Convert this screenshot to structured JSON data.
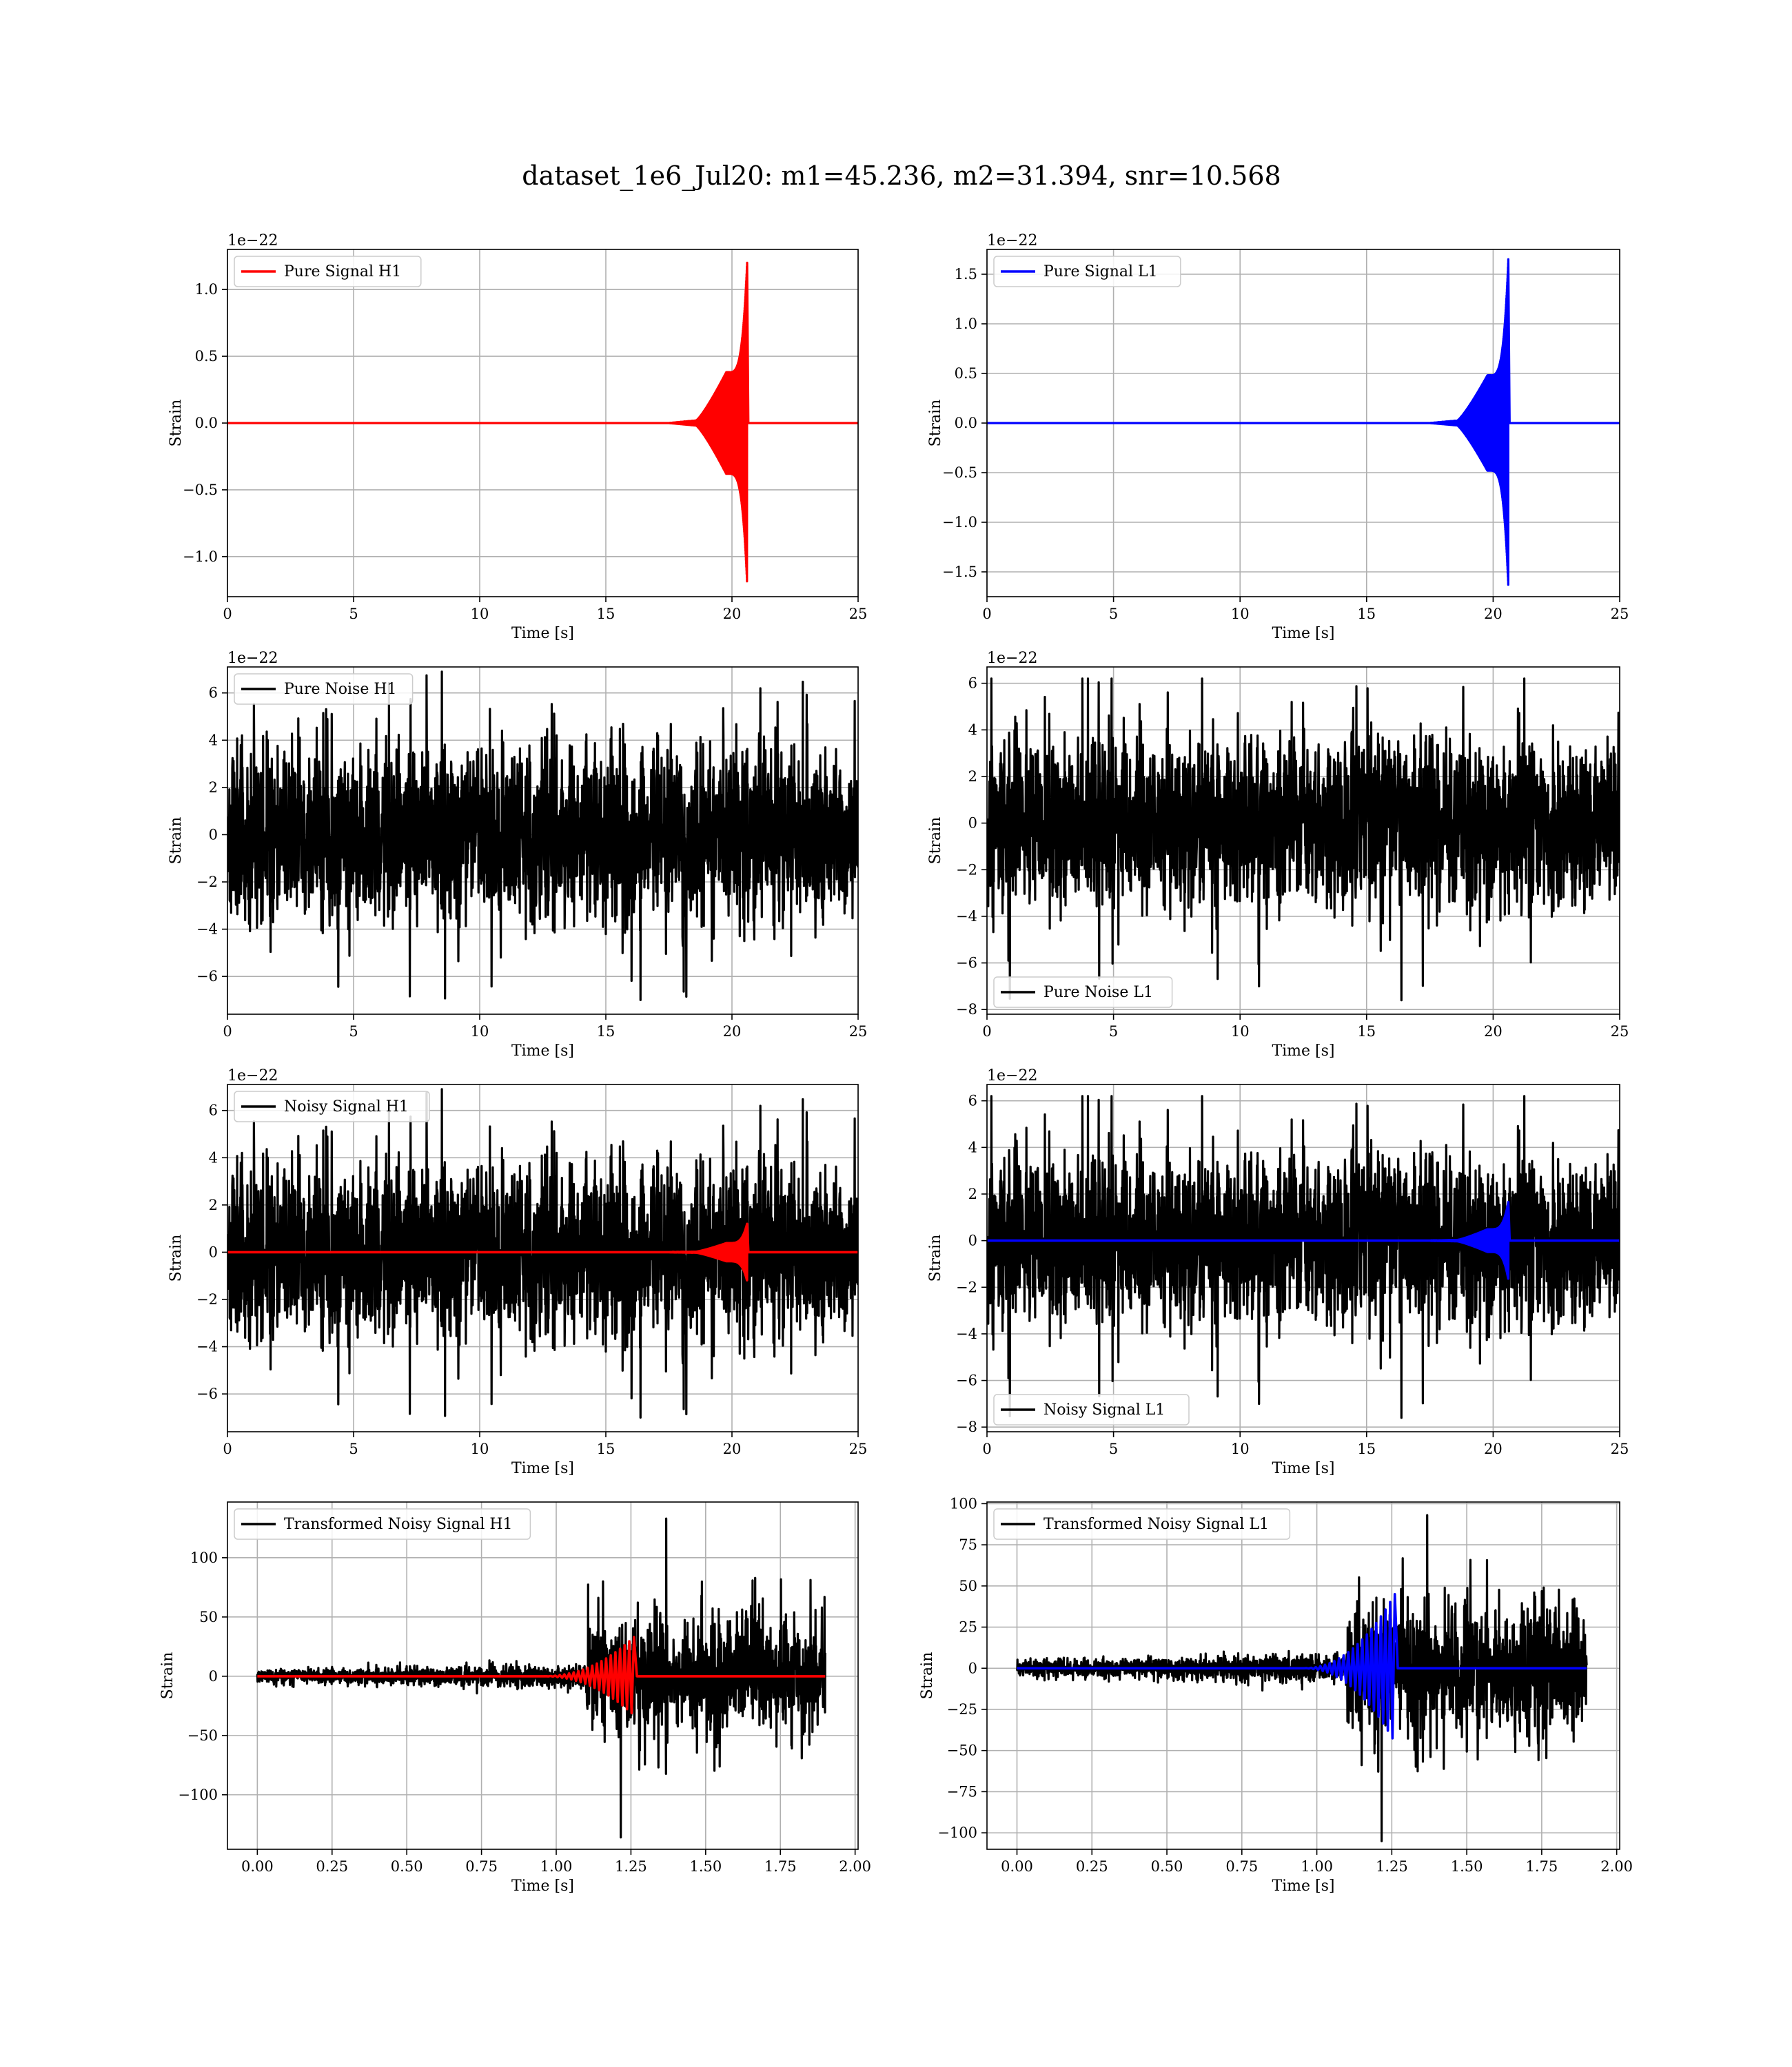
{
  "figure": {
    "title": "dataset_1e6_Jul20: m1=45.236, m2=31.394, snr=10.568"
  },
  "colors": {
    "signal_h1": "#ff0000",
    "signal_l1": "#0000ff",
    "noise": "#000000",
    "grid": "#b0b0b0"
  },
  "chart_data": [
    {
      "id": "pure-signal-h1",
      "type": "line",
      "xlabel": "Time [s]",
      "ylabel": "Strain",
      "xlim": [
        0,
        25
      ],
      "ylim": [
        -1.3,
        1.3
      ],
      "offset_text": "1e−22",
      "xticks": [
        0,
        5,
        10,
        15,
        20,
        25
      ],
      "xtick_labels": [
        "0",
        "5",
        "10",
        "15",
        "20",
        "25"
      ],
      "yticks": [
        -1.0,
        -0.5,
        0.0,
        0.5,
        1.0
      ],
      "ytick_labels": [
        "−1.0",
        "−0.5",
        "0.0",
        "0.5",
        "1.0"
      ],
      "legend": "top-left",
      "grid": true,
      "series": [
        {
          "name": "Pure Signal H1",
          "kind": "chirp",
          "color": "#ff0000",
          "chirp": {
            "start": 17.5,
            "merger": 20.6,
            "early_amp": 0.38,
            "peak_amp": 1.2,
            "seed": 1
          }
        }
      ]
    },
    {
      "id": "pure-signal-l1",
      "type": "line",
      "xlabel": "Time [s]",
      "ylabel": "Strain",
      "xlim": [
        0,
        25
      ],
      "ylim": [
        -1.75,
        1.75
      ],
      "offset_text": "1e−22",
      "xticks": [
        0,
        5,
        10,
        15,
        20,
        25
      ],
      "xtick_labels": [
        "0",
        "5",
        "10",
        "15",
        "20",
        "25"
      ],
      "yticks": [
        -1.5,
        -1.0,
        -0.5,
        0.0,
        0.5,
        1.0,
        1.5
      ],
      "ytick_labels": [
        "−1.5",
        "−1.0",
        "−0.5",
        "0.0",
        "0.5",
        "1.0",
        "1.5"
      ],
      "legend": "top-left",
      "grid": true,
      "series": [
        {
          "name": "Pure Signal L1",
          "kind": "chirp",
          "color": "#0000ff",
          "chirp": {
            "start": 17.5,
            "merger": 20.6,
            "early_amp": 0.48,
            "peak_amp": 1.65,
            "seed": 2
          }
        }
      ]
    },
    {
      "id": "pure-noise-h1",
      "type": "line",
      "xlabel": "Time [s]",
      "ylabel": "Strain",
      "xlim": [
        0,
        25
      ],
      "ylim": [
        -7.6,
        7.1
      ],
      "offset_text": "1e−22",
      "xticks": [
        0,
        5,
        10,
        15,
        20,
        25
      ],
      "xtick_labels": [
        "0",
        "5",
        "10",
        "15",
        "20",
        "25"
      ],
      "yticks": [
        -6,
        -4,
        -2,
        0,
        2,
        4,
        6
      ],
      "ytick_labels": [
        "−6",
        "−4",
        "−2",
        "0",
        "2",
        "4",
        "6"
      ],
      "legend": "top-left",
      "grid": true,
      "series": [
        {
          "name": "Pure Noise H1",
          "kind": "noise",
          "color": "#000000",
          "noise": {
            "band": 3.2,
            "max": 6.9,
            "min": -7.0,
            "seed": 11
          }
        }
      ]
    },
    {
      "id": "pure-noise-l1",
      "type": "line",
      "xlabel": "Time [s]",
      "ylabel": "Strain",
      "xlim": [
        0,
        25
      ],
      "ylim": [
        -8.2,
        6.7
      ],
      "offset_text": "1e−22",
      "xticks": [
        0,
        5,
        10,
        15,
        20,
        25
      ],
      "xtick_labels": [
        "0",
        "5",
        "10",
        "15",
        "20",
        "25"
      ],
      "yticks": [
        -8,
        -6,
        -4,
        -2,
        0,
        2,
        4,
        6
      ],
      "ytick_labels": [
        "−8",
        "−6",
        "−4",
        "−2",
        "0",
        "2",
        "4",
        "6"
      ],
      "legend": "bottom-left",
      "grid": true,
      "series": [
        {
          "name": "Pure Noise L1",
          "kind": "noise",
          "color": "#000000",
          "noise": {
            "band": 3.2,
            "max": 6.2,
            "min": -7.6,
            "seed": 12
          }
        }
      ]
    },
    {
      "id": "noisy-signal-h1",
      "type": "line",
      "xlabel": "Time [s]",
      "ylabel": "Strain",
      "xlim": [
        0,
        25
      ],
      "ylim": [
        -7.6,
        7.1
      ],
      "offset_text": "1e−22",
      "xticks": [
        0,
        5,
        10,
        15,
        20,
        25
      ],
      "xtick_labels": [
        "0",
        "5",
        "10",
        "15",
        "20",
        "25"
      ],
      "yticks": [
        -6,
        -4,
        -2,
        0,
        2,
        4,
        6
      ],
      "ytick_labels": [
        "−6",
        "−4",
        "−2",
        "0",
        "2",
        "4",
        "6"
      ],
      "legend": "top-left",
      "grid": true,
      "series": [
        {
          "name": "Noisy Signal H1",
          "kind": "noise",
          "color": "#000000",
          "noise": {
            "band": 3.2,
            "max": 6.9,
            "min": -7.0,
            "seed": 11
          }
        },
        {
          "name": "",
          "kind": "chirp",
          "color": "#ff0000",
          "chirp": {
            "start": 17.5,
            "merger": 20.6,
            "early_amp": 0.38,
            "peak_amp": 1.2,
            "seed": 1
          }
        }
      ]
    },
    {
      "id": "noisy-signal-l1",
      "type": "line",
      "xlabel": "Time [s]",
      "ylabel": "Strain",
      "xlim": [
        0,
        25
      ],
      "ylim": [
        -8.2,
        6.7
      ],
      "offset_text": "1e−22",
      "xticks": [
        0,
        5,
        10,
        15,
        20,
        25
      ],
      "xtick_labels": [
        "0",
        "5",
        "10",
        "15",
        "20",
        "25"
      ],
      "yticks": [
        -8,
        -6,
        -4,
        -2,
        0,
        2,
        4,
        6
      ],
      "ytick_labels": [
        "−8",
        "−6",
        "−4",
        "−2",
        "0",
        "2",
        "4",
        "6"
      ],
      "legend": "bottom-left",
      "grid": true,
      "series": [
        {
          "name": "Noisy Signal L1",
          "kind": "noise",
          "color": "#000000",
          "noise": {
            "band": 3.2,
            "max": 6.2,
            "min": -7.6,
            "seed": 12
          }
        },
        {
          "name": "",
          "kind": "chirp",
          "color": "#0000ff",
          "chirp": {
            "start": 17.5,
            "merger": 20.6,
            "early_amp": 0.48,
            "peak_amp": 1.65,
            "seed": 2
          }
        }
      ]
    },
    {
      "id": "transformed-noisy-signal-h1",
      "type": "line",
      "xlabel": "Time [s]",
      "ylabel": "Strain",
      "xlim": [
        -0.1,
        2.01
      ],
      "ylim": [
        -146,
        147
      ],
      "offset_text": "",
      "xticks": [
        0,
        0.25,
        0.5,
        0.75,
        1.0,
        1.25,
        1.5,
        1.75,
        2.0
      ],
      "xtick_labels": [
        "0.00",
        "0.25",
        "0.50",
        "0.75",
        "1.00",
        "1.25",
        "1.50",
        "1.75",
        "2.00"
      ],
      "yticks": [
        -100,
        -50,
        0,
        50,
        100
      ],
      "ytick_labels": [
        "−100",
        "−50",
        "0",
        "50",
        "100"
      ],
      "legend": "top-left",
      "grid": true,
      "series": [
        {
          "name": "Transformed Noisy Signal H1",
          "kind": "whitened",
          "color": "#000000",
          "whitened": {
            "end": 1.9,
            "rise": 1.1,
            "early_amp": 7,
            "late_amp": 55,
            "max": 133,
            "min": -136,
            "seed": 21
          }
        },
        {
          "name": "",
          "kind": "whitened-chirp",
          "color": "#ff0000",
          "chirp": {
            "start": 0.95,
            "merger": 1.26,
            "peak_amp": 33,
            "end": 1.9,
            "seed": 3
          }
        }
      ]
    },
    {
      "id": "transformed-noisy-signal-l1",
      "type": "line",
      "xlabel": "Time [s]",
      "ylabel": "Strain",
      "xlim": [
        -0.1,
        2.01
      ],
      "ylim": [
        -110,
        101
      ],
      "offset_text": "",
      "xticks": [
        0,
        0.25,
        0.5,
        0.75,
        1.0,
        1.25,
        1.5,
        1.75,
        2.0
      ],
      "xtick_labels": [
        "0.00",
        "0.25",
        "0.50",
        "0.75",
        "1.00",
        "1.25",
        "1.50",
        "1.75",
        "2.00"
      ],
      "yticks": [
        -100,
        -75,
        -50,
        -25,
        0,
        25,
        50,
        75,
        100
      ],
      "ytick_labels": [
        "−100",
        "−75",
        "−50",
        "−25",
        "0",
        "25",
        "50",
        "75",
        "100"
      ],
      "legend": "top-left",
      "grid": true,
      "series": [
        {
          "name": "Transformed Noisy Signal L1",
          "kind": "whitened",
          "color": "#000000",
          "whitened": {
            "end": 1.9,
            "rise": 1.1,
            "early_amp": 6,
            "late_amp": 45,
            "max": 93,
            "min": -105,
            "seed": 22
          }
        },
        {
          "name": "",
          "kind": "whitened-chirp",
          "color": "#0000ff",
          "chirp": {
            "start": 0.95,
            "merger": 1.26,
            "peak_amp": 45,
            "end": 1.9,
            "seed": 4
          }
        }
      ]
    }
  ]
}
